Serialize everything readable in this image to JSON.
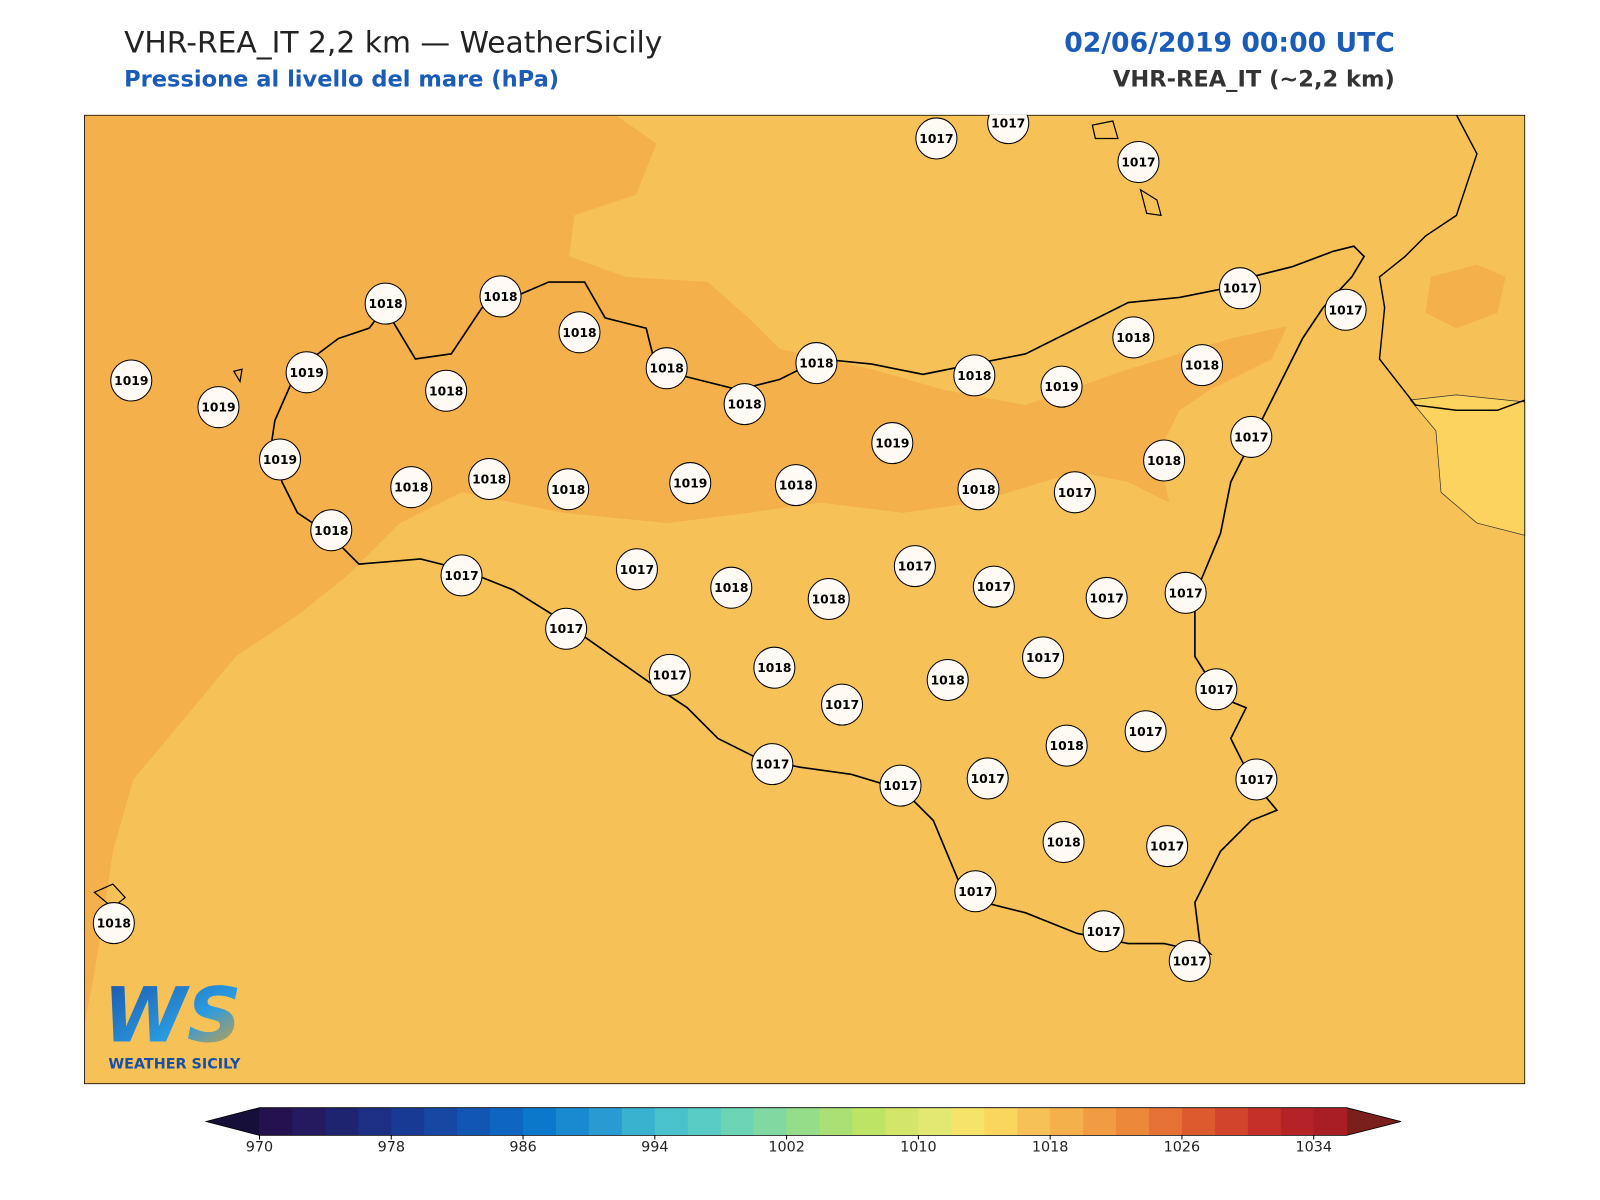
{
  "header": {
    "title": "VHR-REA_IT 2,2 km — WeatherSicily",
    "subtitle": "Pressione al livello del mare (hPa)",
    "datetime": "02/06/2019 00:00 UTC",
    "model": "VHR-REA_IT (~2,2 km)"
  },
  "map": {
    "stations": [
      1017,
      1017,
      1017,
      1018,
      1018,
      1018,
      1019,
      1019,
      1019,
      1018,
      1018,
      1018,
      1018,
      1018,
      1019,
      1018,
      1018,
      1017,
      1017,
      1019,
      1018,
      1018,
      1018,
      1019,
      1018,
      1019,
      1018,
      1017,
      1018,
      1017,
      1018,
      1017,
      1017,
      1018,
      1018,
      1017,
      1017,
      1017,
      1017,
      1017,
      1017,
      1018,
      1017,
      1018,
      1017,
      1017,
      1017,
      1018,
      1017,
      1017,
      1017,
      1017,
      1018,
      1017,
      1017,
      1017,
      1017,
      1018
    ]
  },
  "colorbar": {
    "levels": [
      970,
      972,
      974,
      976,
      978,
      980,
      982,
      984,
      986,
      988,
      990,
      992,
      994,
      996,
      998,
      1000,
      1002,
      1004,
      1006,
      1008,
      1010,
      1012,
      1014,
      1016,
      1018,
      1020,
      1022,
      1024,
      1026,
      1028,
      1030,
      1032,
      1034,
      1036
    ],
    "colors": [
      "#23124f",
      "#251a60",
      "#1f2470",
      "#1c2f85",
      "#183a94",
      "#1547a3",
      "#1256b3",
      "#0e66c2",
      "#0c78cc",
      "#1a8ad0",
      "#2a9bd2",
      "#39b2cf",
      "#49c2cc",
      "#58ccc4",
      "#6ad4b4",
      "#80d9a0",
      "#95dd88",
      "#aadf74",
      "#bee466",
      "#d4e66a",
      "#e3e873",
      "#f6e46a",
      "#fbd65f",
      "#f6c257",
      "#f4b04a",
      "#f19c42",
      "#ec883a",
      "#e67134",
      "#dd5a2e",
      "#d2442b",
      "#c53129",
      "#b52327",
      "#a91d25"
    ],
    "under_color": "#160f3a",
    "over_color": "#7a1f1c",
    "ticks": [
      970,
      978,
      986,
      994,
      1002,
      1010,
      1018,
      1026,
      1034
    ]
  },
  "logo": {
    "mark": "WS",
    "name": "WEATHER SICILY"
  }
}
